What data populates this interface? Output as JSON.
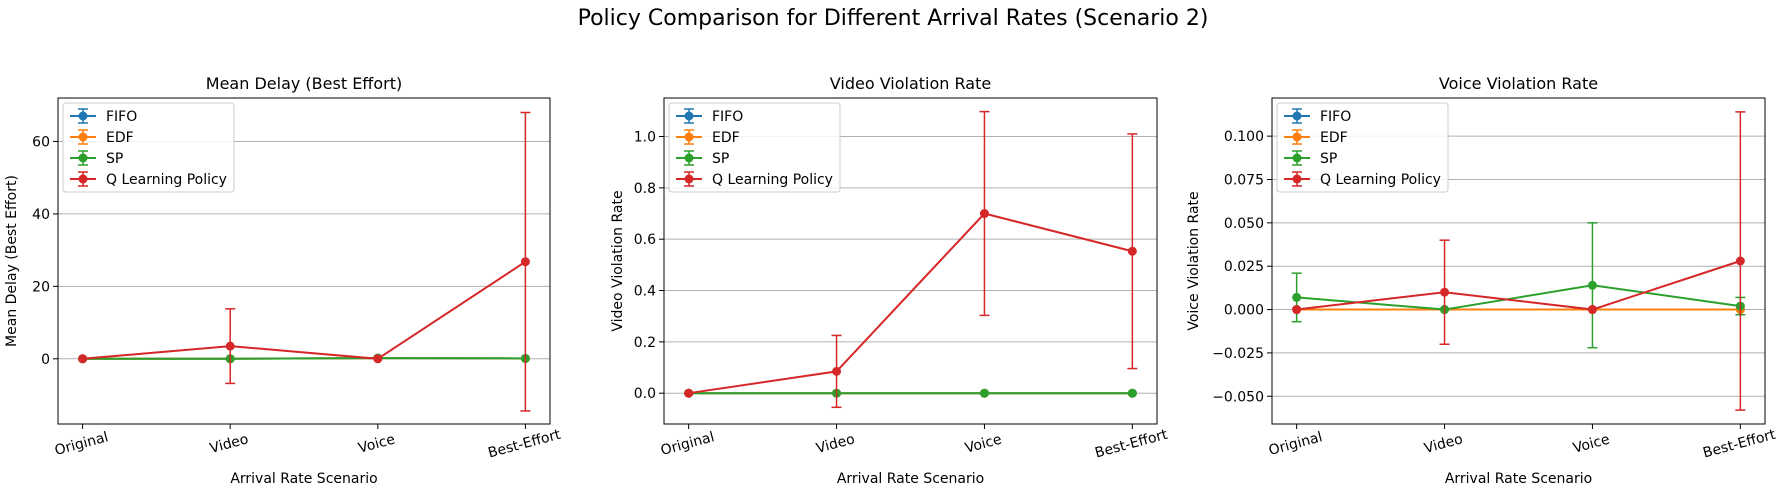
{
  "figure": {
    "suptitle": "Policy Comparison for Different Arrival Rates (Scenario 2)"
  },
  "colors": {
    "FIFO": "#1f77b4",
    "EDF": "#ff7f0e",
    "SP": "#2ca02c",
    "Q Learning Policy": "#d62728",
    "grid": "#b0b0b0"
  },
  "chart_data": [
    {
      "type": "line",
      "title": "Mean Delay (Best Effort)",
      "xlabel": "Arrival Rate Scenario",
      "ylabel": "Mean Delay (Best Effort)",
      "categories": [
        "Original",
        "Video",
        "Voice",
        "Best-Effort"
      ],
      "ylim": [
        -18,
        72
      ],
      "yticks": [
        0,
        20,
        40,
        60
      ],
      "ytick_labels": [
        "0",
        "20",
        "40",
        "60"
      ],
      "grid": "y",
      "legend_position": "upper left",
      "series": [
        {
          "name": "FIFO",
          "values": [
            0,
            0,
            0.2,
            0.1
          ],
          "errors": [
            0,
            0,
            0,
            0
          ]
        },
        {
          "name": "EDF",
          "values": [
            0,
            0,
            0.2,
            0.1
          ],
          "errors": [
            0,
            0,
            0,
            0
          ]
        },
        {
          "name": "SP",
          "values": [
            0,
            0,
            0.2,
            0.1
          ],
          "errors": [
            0,
            0,
            0,
            0
          ]
        },
        {
          "name": "Q Learning Policy",
          "values": [
            0,
            3.5,
            0,
            26.8
          ],
          "errors": [
            0,
            10.3,
            0,
            41.2
          ]
        }
      ]
    },
    {
      "type": "line",
      "title": "Video Violation Rate",
      "xlabel": "Arrival Rate Scenario",
      "ylabel": "Video Violation Rate",
      "categories": [
        "Original",
        "Video",
        "Voice",
        "Best-Effort"
      ],
      "ylim": [
        -0.12,
        1.15
      ],
      "yticks": [
        0,
        0.2,
        0.4,
        0.6,
        0.8,
        1.0
      ],
      "ytick_labels": [
        "0.0",
        "0.2",
        "0.4",
        "0.6",
        "0.8",
        "1.0"
      ],
      "grid": "y",
      "legend_position": "upper left",
      "series": [
        {
          "name": "FIFO",
          "values": [
            0,
            0,
            0,
            0
          ],
          "errors": [
            0,
            0,
            0,
            0
          ]
        },
        {
          "name": "EDF",
          "values": [
            0,
            0,
            0,
            0
          ],
          "errors": [
            0,
            0,
            0,
            0
          ]
        },
        {
          "name": "SP",
          "values": [
            0,
            0,
            0,
            0
          ],
          "errors": [
            0,
            0,
            0,
            0
          ]
        },
        {
          "name": "Q Learning Policy",
          "values": [
            0,
            0.085,
            0.7,
            0.553
          ],
          "errors": [
            0,
            0.14,
            0.397,
            0.457
          ]
        }
      ]
    },
    {
      "type": "line",
      "title": "Voice Violation Rate",
      "xlabel": "Arrival Rate Scenario",
      "ylabel": "Voice Violation Rate",
      "categories": [
        "Original",
        "Video",
        "Voice",
        "Best-Effort"
      ],
      "ylim": [
        -0.066,
        0.122
      ],
      "yticks": [
        -0.05,
        -0.025,
        0,
        0.025,
        0.05,
        0.075,
        0.1
      ],
      "ytick_labels": [
        "−0.050",
        "−0.025",
        "0.000",
        "0.025",
        "0.050",
        "0.075",
        "0.100"
      ],
      "grid": "y",
      "legend_position": "upper left",
      "series": [
        {
          "name": "FIFO",
          "values": [
            0,
            0,
            0,
            0
          ],
          "errors": [
            0,
            0,
            0,
            0
          ]
        },
        {
          "name": "EDF",
          "values": [
            0,
            0,
            0,
            0
          ],
          "errors": [
            0,
            0,
            0,
            0
          ]
        },
        {
          "name": "SP",
          "values": [
            0.007,
            0,
            0.014,
            0.002
          ],
          "errors": [
            0.014,
            0,
            0.036,
            0.005
          ]
        },
        {
          "name": "Q Learning Policy",
          "values": [
            0,
            0.01,
            0,
            0.028
          ],
          "errors": [
            0,
            0.03,
            0,
            0.086
          ]
        }
      ]
    }
  ]
}
